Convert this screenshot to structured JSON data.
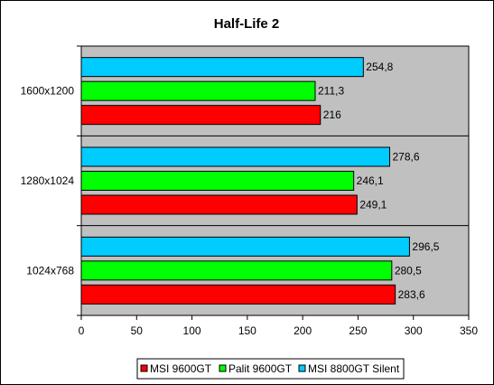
{
  "chart_data": {
    "type": "bar",
    "orientation": "horizontal",
    "title": "Half-Life 2",
    "xlabel": "",
    "ylabel": "",
    "categories": [
      "1600x1200",
      "1280x1024",
      "1024x768"
    ],
    "series": [
      {
        "name": "MSI 9600GT",
        "color": "#ff0000",
        "values": [
          216,
          249.1,
          283.6
        ],
        "labels": [
          "216",
          "249,1",
          "283,6"
        ]
      },
      {
        "name": "Palit 9600GT",
        "color": "#00ff00",
        "values": [
          211.3,
          246.1,
          280.5
        ],
        "labels": [
          "211,3",
          "246,1",
          "280,5"
        ]
      },
      {
        "name": "MSI 8800GT Silent",
        "color": "#00ccff",
        "values": [
          254.8,
          278.6,
          296.5
        ],
        "labels": [
          "254,8",
          "278,6",
          "296,5"
        ]
      }
    ],
    "xlim": [
      0,
      350
    ],
    "xticks": [
      "0",
      "50",
      "100",
      "150",
      "200",
      "250",
      "300",
      "350"
    ],
    "grid": false,
    "legend_position": "bottom"
  }
}
